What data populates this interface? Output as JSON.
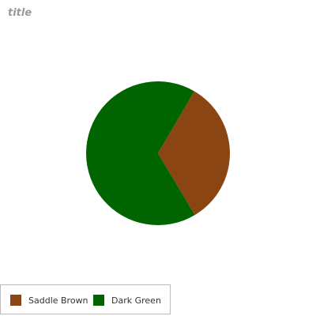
{
  "chart_data": {
    "type": "pie",
    "title": "title",
    "slices": [
      {
        "label": "Saddle Brown",
        "value": 33,
        "color": "#8B4513"
      },
      {
        "label": "Dark Green",
        "value": 67,
        "color": "#006400"
      }
    ],
    "legend_position": "bottom-left"
  }
}
